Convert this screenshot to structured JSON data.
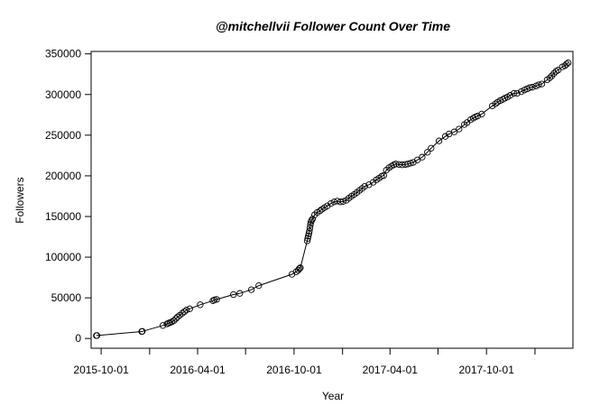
{
  "chart_data": {
    "type": "line",
    "title": "@mitchellvii Follower Count Over Time",
    "xlabel": "Year",
    "ylabel": "Followers",
    "x_ticks": [
      "2015-10-01",
      "2016-01-01",
      "2016-04-01",
      "2016-07-01",
      "2016-10-01",
      "2017-01-01",
      "2017-04-01",
      "2017-07-01",
      "2017-10-01",
      "2018-01-01"
    ],
    "x_tick_labels": {
      "2015-10-01": "2015-10-01",
      "2016-04-01": "2016-04-01",
      "2016-10-01": "2016-10-01",
      "2017-04-01": "2017-04-01",
      "2017-10-01": "2017-10-01"
    },
    "y_ticks": [
      0,
      50000,
      100000,
      150000,
      200000,
      250000,
      300000,
      350000
    ],
    "y_tick_labels": [
      "0",
      "50000",
      "100000",
      "150000",
      "200000",
      "250000",
      "300000",
      "350000"
    ],
    "xlim": [
      "2015-09-12",
      "2018-03-14"
    ],
    "ylim": [
      -12000,
      353000
    ],
    "markers": "open-circle",
    "series": [
      {
        "points": [
          [
            "2015-09-22",
            3500
          ],
          [
            "2015-09-23",
            3600
          ],
          [
            "2015-12-17",
            8500
          ],
          [
            "2015-12-18",
            8700
          ],
          [
            "2016-01-26",
            16000
          ],
          [
            "2016-02-03",
            18000
          ],
          [
            "2016-02-06",
            18800
          ],
          [
            "2016-02-09",
            19600
          ],
          [
            "2016-02-12",
            20400
          ],
          [
            "2016-02-16",
            22000
          ],
          [
            "2016-02-20",
            24500
          ],
          [
            "2016-02-23",
            26500
          ],
          [
            "2016-02-27",
            28500
          ],
          [
            "2016-03-03",
            31000
          ],
          [
            "2016-03-07",
            33000
          ],
          [
            "2016-03-11",
            35000
          ],
          [
            "2016-03-17",
            36500
          ],
          [
            "2016-04-06",
            41500
          ],
          [
            "2016-04-30",
            46500
          ],
          [
            "2016-05-03",
            47500
          ],
          [
            "2016-05-07",
            48000
          ],
          [
            "2016-06-08",
            54000
          ],
          [
            "2016-06-20",
            55500
          ],
          [
            "2016-07-12",
            60000
          ],
          [
            "2016-07-26",
            65000
          ],
          [
            "2016-09-27",
            79000
          ],
          [
            "2016-10-05",
            82000
          ],
          [
            "2016-10-09",
            84000
          ],
          [
            "2016-10-11",
            86000
          ],
          [
            "2016-10-13",
            87000
          ],
          [
            "2016-10-26",
            120000
          ],
          [
            "2016-10-27",
            123000
          ],
          [
            "2016-10-28",
            126000
          ],
          [
            "2016-10-29",
            129000
          ],
          [
            "2016-10-30",
            132000
          ],
          [
            "2016-10-31",
            136000
          ],
          [
            "2016-11-01",
            140000
          ],
          [
            "2016-11-02",
            143000
          ],
          [
            "2016-11-03",
            145000
          ],
          [
            "2016-11-05",
            147000
          ],
          [
            "2016-11-09",
            152000
          ],
          [
            "2016-11-14",
            155000
          ],
          [
            "2016-11-19",
            157000
          ],
          [
            "2016-11-23",
            159000
          ],
          [
            "2016-11-28",
            161000
          ],
          [
            "2016-12-03",
            163000
          ],
          [
            "2016-12-10",
            166000
          ],
          [
            "2016-12-16",
            168000
          ],
          [
            "2016-12-22",
            169000
          ],
          [
            "2016-12-28",
            168000
          ],
          [
            "2017-01-02",
            168500
          ],
          [
            "2017-01-08",
            170000
          ],
          [
            "2017-01-13",
            172500
          ],
          [
            "2017-01-18",
            175000
          ],
          [
            "2017-01-23",
            177000
          ],
          [
            "2017-01-28",
            179500
          ],
          [
            "2017-02-02",
            182000
          ],
          [
            "2017-02-07",
            184500
          ],
          [
            "2017-02-12",
            187000
          ],
          [
            "2017-02-20",
            189000
          ],
          [
            "2017-02-28",
            192000
          ],
          [
            "2017-03-06",
            195000
          ],
          [
            "2017-03-11",
            197000
          ],
          [
            "2017-03-16",
            199500
          ],
          [
            "2017-03-20",
            200500
          ],
          [
            "2017-03-25",
            207000
          ],
          [
            "2017-03-30",
            210000
          ],
          [
            "2017-04-04",
            212000
          ],
          [
            "2017-04-08",
            213500
          ],
          [
            "2017-04-12",
            214500
          ],
          [
            "2017-04-18",
            214000
          ],
          [
            "2017-04-24",
            213500
          ],
          [
            "2017-04-30",
            214000
          ],
          [
            "2017-05-05",
            214500
          ],
          [
            "2017-05-10",
            215500
          ],
          [
            "2017-05-15",
            216500
          ],
          [
            "2017-05-23",
            219500
          ],
          [
            "2017-06-01",
            223000
          ],
          [
            "2017-06-11",
            229000
          ],
          [
            "2017-06-18",
            234000
          ],
          [
            "2017-07-03",
            243000
          ],
          [
            "2017-07-15",
            248500
          ],
          [
            "2017-07-22",
            251500
          ],
          [
            "2017-08-01",
            254000
          ],
          [
            "2017-08-10",
            257500
          ],
          [
            "2017-08-20",
            263000
          ],
          [
            "2017-08-25",
            265500
          ],
          [
            "2017-09-01",
            269000
          ],
          [
            "2017-09-06",
            271000
          ],
          [
            "2017-09-10",
            272500
          ],
          [
            "2017-09-14",
            273500
          ],
          [
            "2017-09-22",
            276000
          ],
          [
            "2017-10-12",
            286000
          ],
          [
            "2017-10-18",
            288500
          ],
          [
            "2017-10-22",
            290500
          ],
          [
            "2017-10-27",
            292500
          ],
          [
            "2017-11-01",
            294000
          ],
          [
            "2017-11-05",
            295500
          ],
          [
            "2017-11-10",
            297000
          ],
          [
            "2017-11-15",
            299000
          ],
          [
            "2017-11-22",
            301500
          ],
          [
            "2017-11-28",
            301500
          ],
          [
            "2017-12-06",
            303500
          ],
          [
            "2017-12-12",
            305500
          ],
          [
            "2017-12-17",
            307000
          ],
          [
            "2017-12-22",
            308500
          ],
          [
            "2017-12-27",
            309000
          ],
          [
            "2018-01-03",
            310500
          ],
          [
            "2018-01-08",
            312000
          ],
          [
            "2018-01-14",
            313000
          ],
          [
            "2018-01-24",
            318000
          ],
          [
            "2018-01-29",
            320500
          ],
          [
            "2018-02-02",
            323000
          ],
          [
            "2018-02-06",
            326000
          ],
          [
            "2018-02-10",
            328500
          ],
          [
            "2018-02-14",
            330000
          ],
          [
            "2018-02-22",
            334000
          ],
          [
            "2018-02-27",
            335500
          ],
          [
            "2018-03-02",
            337500
          ],
          [
            "2018-03-05",
            339000
          ]
        ]
      }
    ]
  }
}
